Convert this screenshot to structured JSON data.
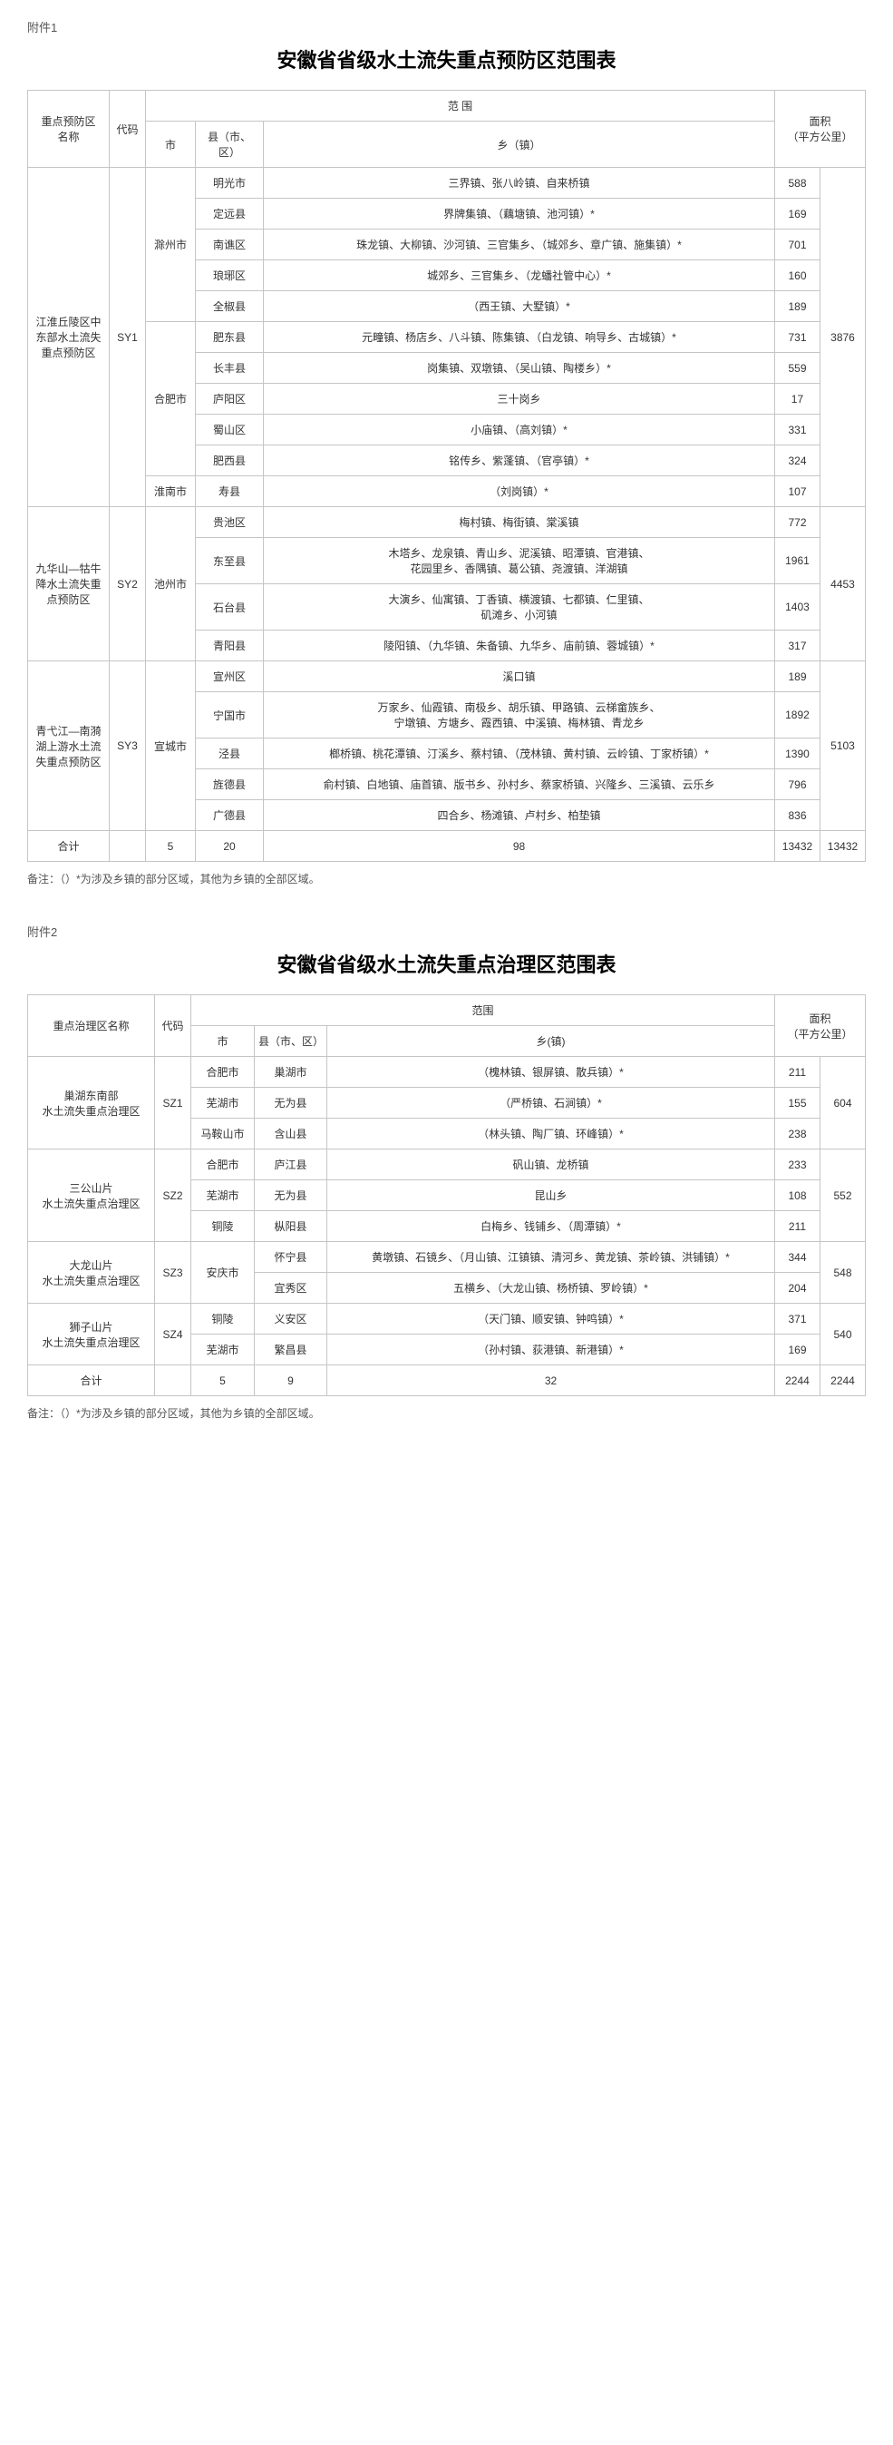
{
  "attachment1": {
    "label": "附件1",
    "title": "安徽省省级水土流失重点预防区范围表",
    "headers": {
      "zone": "重点预防区\n名称",
      "code": "代码",
      "range": "范 围",
      "city": "市",
      "county": "县（市、区）",
      "town": "乡（镇）",
      "area": "面积\n（平方公里）"
    },
    "groups": [
      {
        "zone": "江淮丘陵区中东部水土流失重点预防区",
        "code": "SY1",
        "subtotal": "3876",
        "blocks": [
          {
            "city": "滁州市",
            "rows": [
              {
                "county": "明光市",
                "town": "三界镇、张八岭镇、自来桥镇",
                "area": "588"
              },
              {
                "county": "定远县",
                "town": "界牌集镇、（藕塘镇、池河镇）*",
                "area": "169"
              },
              {
                "county": "南谯区",
                "town": "珠龙镇、大柳镇、沙河镇、三官集乡、（城郊乡、章广镇、施集镇）*",
                "area": "701"
              },
              {
                "county": "琅琊区",
                "town": "城郊乡、三官集乡、（龙蟠社管中心）*",
                "area": "160"
              },
              {
                "county": "全椒县",
                "town": "（西王镇、大墅镇）*",
                "area": "189"
              }
            ]
          },
          {
            "city": "合肥市",
            "rows": [
              {
                "county": "肥东县",
                "town": "元疃镇、杨店乡、八斗镇、陈集镇、（白龙镇、响导乡、古城镇）*",
                "area": "731"
              },
              {
                "county": "长丰县",
                "town": "岗集镇、双墩镇、（吴山镇、陶楼乡）*",
                "area": "559"
              },
              {
                "county": "庐阳区",
                "town": "三十岗乡",
                "area": "17"
              },
              {
                "county": "蜀山区",
                "town": "小庙镇、（高刘镇）*",
                "area": "331"
              },
              {
                "county": "肥西县",
                "town": "铭传乡、紫蓬镇、（官亭镇）*",
                "area": "324"
              }
            ]
          },
          {
            "city": "淮南市",
            "rows": [
              {
                "county": "寿县",
                "town": "（刘岗镇）*",
                "area": "107"
              }
            ]
          }
        ]
      },
      {
        "zone": "九华山—牯牛降水土流失重点预防区",
        "code": "SY2",
        "subtotal": "4453",
        "blocks": [
          {
            "city": "池州市",
            "rows": [
              {
                "county": "贵池区",
                "town": "梅村镇、梅街镇、棠溪镇",
                "area": "772"
              },
              {
                "county": "东至县",
                "town": "木塔乡、龙泉镇、青山乡、泥溪镇、昭潭镇、官港镇、\n花园里乡、香隅镇、葛公镇、尧渡镇、洋湖镇",
                "area": "1961"
              },
              {
                "county": "石台县",
                "town": "大演乡、仙寓镇、丁香镇、横渡镇、七都镇、仁里镇、\n矶滩乡、小河镇",
                "area": "1403"
              },
              {
                "county": "青阳县",
                "town": "陵阳镇、（九华镇、朱备镇、九华乡、庙前镇、蓉城镇）*",
                "area": "317"
              }
            ]
          }
        ]
      },
      {
        "zone": "青弋江—南漪湖上游水土流失重点预防区",
        "code": "SY3",
        "subtotal": "5103",
        "blocks": [
          {
            "city": "宣城市",
            "rows": [
              {
                "county": "宣州区",
                "town": "溪口镇",
                "area": "189"
              },
              {
                "county": "宁国市",
                "town": "万家乡、仙霞镇、南极乡、胡乐镇、甲路镇、云梯畲族乡、\n宁墩镇、方塘乡、霞西镇、中溪镇、梅林镇、青龙乡",
                "area": "1892"
              },
              {
                "county": "泾县",
                "town": "榔桥镇、桃花潭镇、汀溪乡、蔡村镇、（茂林镇、黄村镇、云岭镇、丁家桥镇）*",
                "area": "1390"
              },
              {
                "county": "旌德县",
                "town": "俞村镇、白地镇、庙首镇、版书乡、孙村乡、蔡家桥镇、兴隆乡、三溪镇、云乐乡",
                "area": "796"
              },
              {
                "county": "广德县",
                "town": "四合乡、杨滩镇、卢村乡、柏垫镇",
                "area": "836"
              }
            ]
          }
        ]
      }
    ],
    "totals": {
      "label": "合计",
      "city": "5",
      "county": "20",
      "town": "98",
      "area": "13432",
      "area2": "13432"
    },
    "note": "备注：（）*为涉及乡镇的部分区域，其他为乡镇的全部区域。"
  },
  "attachment2": {
    "label": "附件2",
    "title": "安徽省省级水土流失重点治理区范围表",
    "headers": {
      "zone": "重点治理区名称",
      "code": "代码",
      "range": "范围",
      "city": "市",
      "county": "县（市、区）",
      "town": "乡(镇)",
      "area": "面积\n（平方公里）"
    },
    "groups": [
      {
        "zone": "巢湖东南部\n水土流失重点治理区",
        "code": "SZ1",
        "subtotal": "604",
        "rows": [
          {
            "city": "合肥市",
            "county": "巢湖市",
            "town": "（槐林镇、银屏镇、散兵镇）*",
            "area": "211"
          },
          {
            "city": "芜湖市",
            "county": "无为县",
            "town": "（严桥镇、石涧镇）*",
            "area": "155"
          },
          {
            "city": "马鞍山市",
            "county": "含山县",
            "town": "（林头镇、陶厂镇、环峰镇）*",
            "area": "238"
          }
        ]
      },
      {
        "zone": "三公山片\n水土流失重点治理区",
        "code": "SZ2",
        "subtotal": "552",
        "rows": [
          {
            "city": "合肥市",
            "county": "庐江县",
            "town": "矾山镇、龙桥镇",
            "area": "233"
          },
          {
            "city": "芜湖市",
            "county": "无为县",
            "town": "昆山乡",
            "area": "108"
          },
          {
            "city": "铜陵",
            "county": "枞阳县",
            "town": "白梅乡、钱铺乡、（周潭镇）*",
            "area": "211"
          }
        ]
      },
      {
        "zone": "大龙山片\n水土流失重点治理区",
        "code": "SZ3",
        "subtotal": "548",
        "cityBlock": "安庆市",
        "rows": [
          {
            "county": "怀宁县",
            "town": "黄墩镇、石镜乡、（月山镇、江镇镇、清河乡、黄龙镇、茶岭镇、洪铺镇）*",
            "area": "344"
          },
          {
            "county": "宜秀区",
            "town": "五横乡、（大龙山镇、杨桥镇、罗岭镇）*",
            "area": "204"
          }
        ]
      },
      {
        "zone": "狮子山片\n水土流失重点治理区",
        "code": "SZ4",
        "subtotal": "540",
        "rows": [
          {
            "city": "铜陵",
            "county": "义安区",
            "town": "（天门镇、顺安镇、钟鸣镇）*",
            "area": "371"
          },
          {
            "city": "芜湖市",
            "county": "繁昌县",
            "town": "（孙村镇、荻港镇、新港镇）*",
            "area": "169"
          }
        ]
      }
    ],
    "totals": {
      "label": "合计",
      "city": "5",
      "county": "9",
      "town": "32",
      "area": "2244",
      "area2": "2244"
    },
    "note": "备注：（）*为涉及乡镇的部分区域，其他为乡镇的全部区域。"
  }
}
